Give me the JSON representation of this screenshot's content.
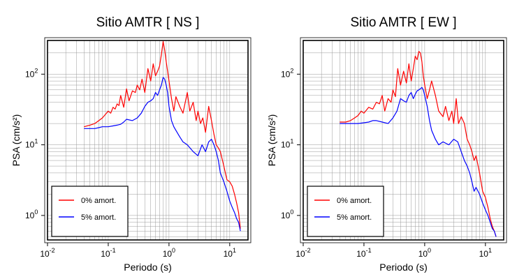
{
  "chart_data": [
    {
      "type": "line",
      "title": "Sitio AMTR [ NS ]",
      "xlabel": "Periodo (s)",
      "ylabel": "PSA (cm/s²)",
      "x_scale": "log",
      "y_scale": "log",
      "xlim": [
        0.01,
        20
      ],
      "ylim": [
        0.45,
        300
      ],
      "x_ticks": [
        0.01,
        0.1,
        1,
        10
      ],
      "x_tick_labels": [
        {
          "base": "10",
          "exp": "-2"
        },
        {
          "base": "10",
          "exp": "-1"
        },
        {
          "base": "10",
          "exp": "0"
        },
        {
          "base": "10",
          "exp": "1"
        }
      ],
      "y_ticks": [
        1,
        10,
        100
      ],
      "y_tick_labels": [
        {
          "base": "10",
          "exp": "0"
        },
        {
          "base": "10",
          "exp": "1"
        },
        {
          "base": "10",
          "exp": "2"
        }
      ],
      "grid": true,
      "legend_position": "bottom-left",
      "series": [
        {
          "name": "0% amort.",
          "color": "#ff0000",
          "x": [
            0.04,
            0.05,
            0.06,
            0.07,
            0.08,
            0.09,
            0.1,
            0.11,
            0.12,
            0.13,
            0.14,
            0.15,
            0.16,
            0.18,
            0.2,
            0.22,
            0.25,
            0.28,
            0.3,
            0.33,
            0.36,
            0.4,
            0.45,
            0.5,
            0.55,
            0.6,
            0.65,
            0.7,
            0.75,
            0.8,
            0.85,
            0.9,
            0.95,
            1.0,
            1.1,
            1.2,
            1.3,
            1.5,
            1.7,
            2.0,
            2.2,
            2.5,
            2.8,
            3.0,
            3.3,
            3.6,
            4.0,
            4.5,
            5.0,
            5.5,
            6.0,
            6.5,
            7.0,
            8.0,
            9.0,
            10.0,
            11.0,
            12.0,
            13.0,
            14.0,
            15.0
          ],
          "values": [
            18,
            19,
            20,
            22,
            24,
            27,
            30,
            28,
            34,
            32,
            38,
            36,
            50,
            34,
            62,
            42,
            58,
            55,
            70,
            60,
            85,
            55,
            120,
            80,
            140,
            95,
            110,
            130,
            190,
            290,
            220,
            150,
            110,
            80,
            45,
            30,
            48,
            35,
            28,
            55,
            30,
            40,
            22,
            30,
            20,
            24,
            15,
            35,
            22,
            14,
            10,
            9,
            8,
            5,
            3.2,
            3.0,
            2.6,
            2.0,
            1.5,
            1.1,
            0.65
          ]
        },
        {
          "name": "5% amort.",
          "color": "#0000ff",
          "x": [
            0.04,
            0.05,
            0.06,
            0.07,
            0.08,
            0.09,
            0.1,
            0.12,
            0.14,
            0.16,
            0.18,
            0.2,
            0.25,
            0.3,
            0.35,
            0.4,
            0.45,
            0.5,
            0.55,
            0.6,
            0.65,
            0.7,
            0.75,
            0.8,
            0.85,
            0.9,
            0.95,
            1.0,
            1.1,
            1.2,
            1.3,
            1.5,
            1.7,
            2.0,
            2.5,
            3.0,
            3.5,
            4.0,
            4.5,
            5.0,
            5.5,
            6.0,
            6.5,
            7.0,
            8.0,
            9.0,
            10.0,
            11.0,
            12.0,
            13.0,
            14.0,
            15.0
          ],
          "values": [
            17,
            17,
            17,
            17.5,
            18,
            18,
            18,
            18.5,
            19,
            19.5,
            21,
            23,
            22,
            24,
            28,
            35,
            40,
            42,
            45,
            55,
            50,
            60,
            70,
            90,
            85,
            70,
            55,
            35,
            22,
            18,
            16,
            13,
            11,
            10,
            8,
            7,
            10,
            8,
            11,
            12,
            10,
            8,
            6,
            4,
            3,
            2.2,
            1.6,
            1.3,
            1.1,
            0.9,
            0.8,
            0.6
          ]
        }
      ]
    },
    {
      "type": "line",
      "title": "Sitio AMTR [ EW ]",
      "xlabel": "Periodo (s)",
      "ylabel": "PSA (cm/s²)",
      "x_scale": "log",
      "y_scale": "log",
      "xlim": [
        0.01,
        20
      ],
      "ylim": [
        0.45,
        300
      ],
      "x_ticks": [
        0.01,
        0.1,
        1,
        10
      ],
      "x_tick_labels": [
        {
          "base": "10",
          "exp": "-2"
        },
        {
          "base": "10",
          "exp": "-1"
        },
        {
          "base": "10",
          "exp": "0"
        },
        {
          "base": "10",
          "exp": "1"
        }
      ],
      "y_ticks": [
        1,
        10,
        100
      ],
      "y_tick_labels": [
        {
          "base": "10",
          "exp": "0"
        },
        {
          "base": "10",
          "exp": "1"
        },
        {
          "base": "10",
          "exp": "2"
        }
      ],
      "grid": true,
      "legend_position": "bottom-left",
      "series": [
        {
          "name": "0% amort.",
          "color": "#ff0000",
          "x": [
            0.04,
            0.05,
            0.06,
            0.07,
            0.08,
            0.09,
            0.1,
            0.12,
            0.14,
            0.16,
            0.18,
            0.2,
            0.22,
            0.25,
            0.28,
            0.3,
            0.33,
            0.36,
            0.4,
            0.45,
            0.5,
            0.55,
            0.6,
            0.65,
            0.7,
            0.75,
            0.8,
            0.85,
            0.9,
            0.95,
            1.0,
            1.1,
            1.2,
            1.3,
            1.5,
            1.7,
            2.0,
            2.2,
            2.5,
            2.8,
            3.0,
            3.3,
            3.6,
            4.0,
            4.5,
            5.0,
            5.5,
            6.0,
            6.5,
            7.0,
            8.0,
            9.0,
            10.0,
            11.0,
            12.0,
            13.0,
            14.0,
            15.0
          ],
          "values": [
            21,
            21,
            22,
            24,
            26,
            30,
            28,
            34,
            32,
            40,
            38,
            50,
            30,
            45,
            40,
            60,
            48,
            120,
            70,
            110,
            75,
            140,
            80,
            120,
            180,
            160,
            210,
            200,
            150,
            95,
            70,
            45,
            60,
            80,
            50,
            30,
            25,
            35,
            22,
            30,
            20,
            45,
            20,
            25,
            20,
            12,
            10,
            8,
            6,
            7,
            4,
            2.2,
            1.8,
            1.3,
            0.9,
            0.7,
            0.6,
            0.5
          ]
        },
        {
          "name": "5% amort.",
          "color": "#0000ff",
          "x": [
            0.04,
            0.05,
            0.06,
            0.08,
            0.1,
            0.12,
            0.14,
            0.16,
            0.2,
            0.25,
            0.3,
            0.35,
            0.4,
            0.45,
            0.5,
            0.55,
            0.6,
            0.65,
            0.7,
            0.75,
            0.8,
            0.85,
            0.9,
            0.95,
            1.0,
            1.1,
            1.2,
            1.3,
            1.5,
            1.7,
            2.0,
            2.5,
            3.0,
            3.5,
            4.0,
            4.5,
            5.0,
            5.5,
            6.0,
            6.5,
            7.0,
            8.0,
            9.0,
            10.0,
            11.0,
            12.0,
            13.0,
            14.0,
            15.0
          ],
          "values": [
            20,
            20,
            20,
            20,
            20.5,
            21,
            22,
            22,
            21,
            20,
            24,
            30,
            45,
            42,
            40,
            50,
            55,
            45,
            52,
            58,
            60,
            62,
            65,
            60,
            50,
            35,
            22,
            16,
            12,
            10,
            11,
            10,
            12,
            11,
            8,
            6,
            5,
            4,
            3,
            2.2,
            2.5,
            2.0,
            1.5,
            1.2,
            1.0,
            0.8,
            0.65,
            0.6,
            0.5
          ]
        }
      ]
    }
  ]
}
